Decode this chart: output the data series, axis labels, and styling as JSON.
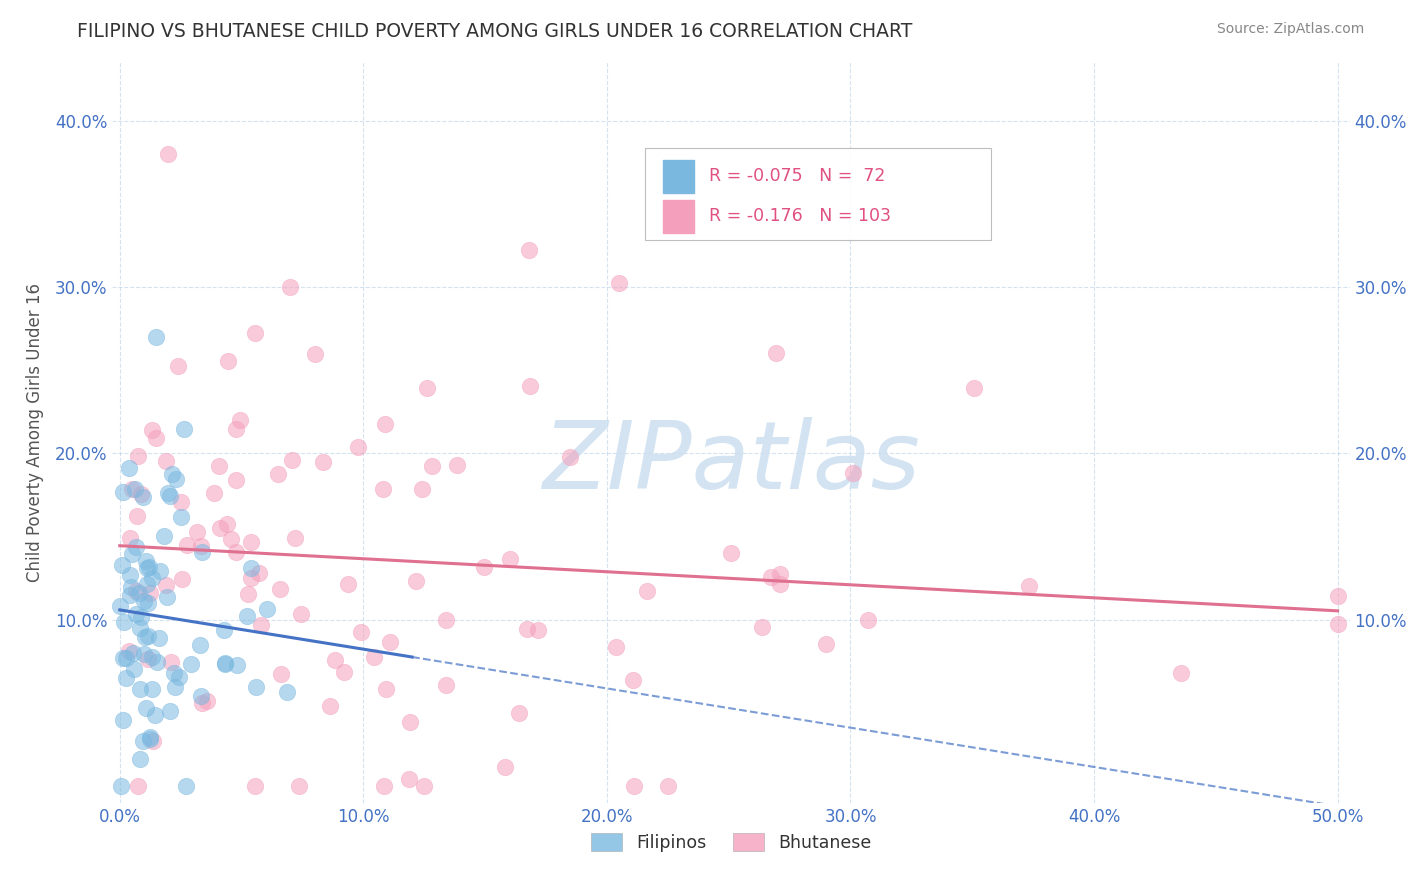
{
  "title": "FILIPINO VS BHUTANESE CHILD POVERTY AMONG GIRLS UNDER 16 CORRELATION CHART",
  "source": "Source: ZipAtlas.com",
  "ylabel": "Child Poverty Among Girls Under 16",
  "xlim": [
    -0.003,
    0.505
  ],
  "ylim": [
    -0.01,
    0.435
  ],
  "xticks": [
    0.0,
    0.1,
    0.2,
    0.3,
    0.4,
    0.5
  ],
  "yticks": [
    0.1,
    0.2,
    0.3,
    0.4
  ],
  "xticklabels": [
    "0.0%",
    "10.0%",
    "20.0%",
    "30.0%",
    "40.0%",
    "50.0%"
  ],
  "yticklabels": [
    "10.0%",
    "20.0%",
    "30.0%",
    "40.0%"
  ],
  "filipino_color": "#7ab8e0",
  "bhutanese_color": "#f4a0bc",
  "filipino_line_color": "#4472c4",
  "bhutanese_line_color": "#e07090",
  "tick_color": "#4472c4",
  "filipino_R": -0.075,
  "filipino_N": 72,
  "bhutanese_R": -0.176,
  "bhutanese_N": 103,
  "watermark_text": "ZIPatlas",
  "watermark_color": "#ccdff0",
  "legend_text_color": "#e05080",
  "legend_N_color": "#4472c4"
}
